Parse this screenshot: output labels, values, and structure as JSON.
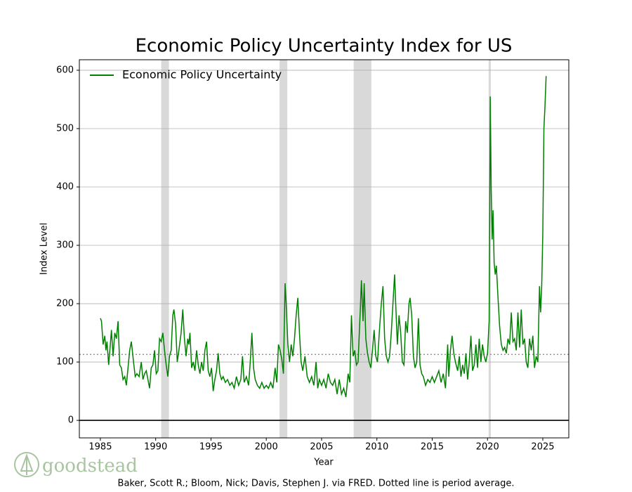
{
  "chart_data": {
    "type": "line",
    "title": "Economic Policy Uncertainty Index for US",
    "xlabel": "Year",
    "ylabel": "Index Level",
    "source": "Baker, Scott R.; Bloom, Nick; Davis, Stephen J. via FRED. Dotted line is period average.",
    "logo": "goodstead",
    "legend": "upper left",
    "grid": true,
    "xlim": [
      1983.1,
      2027.35
    ],
    "xticks": [
      1985,
      1990,
      1995,
      2000,
      2005,
      2010,
      2015,
      2020,
      2025
    ],
    "ylim": [
      -30,
      618
    ],
    "yticks": [
      0,
      100,
      200,
      300,
      400,
      500,
      600
    ],
    "average": 113,
    "recessions": [
      [
        1990.5,
        1991.2
      ],
      [
        2001.2,
        2001.9
      ],
      [
        2007.9,
        2009.5
      ],
      [
        2020.1,
        2020.3
      ]
    ],
    "x": [
      1985.0,
      1985.1,
      1985.25,
      1985.4,
      1985.5,
      1985.6,
      1985.75,
      1985.9,
      1986.0,
      1986.15,
      1986.3,
      1986.45,
      1986.6,
      1986.75,
      1986.9,
      1987.05,
      1987.2,
      1987.35,
      1987.5,
      1987.65,
      1987.8,
      1988.0,
      1988.15,
      1988.3,
      1988.5,
      1988.7,
      1988.85,
      1989.0,
      1989.15,
      1989.3,
      1989.45,
      1989.6,
      1989.75,
      1989.9,
      1990.05,
      1990.2,
      1990.35,
      1990.5,
      1990.65,
      1990.8,
      1990.95,
      1991.1,
      1991.25,
      1991.4,
      1991.55,
      1991.65,
      1991.8,
      1991.95,
      1992.1,
      1992.3,
      1992.45,
      1992.6,
      1992.75,
      1992.9,
      1993.0,
      1993.1,
      1993.25,
      1993.4,
      1993.55,
      1993.7,
      1993.85,
      1994.0,
      1994.15,
      1994.3,
      1994.45,
      1994.6,
      1994.75,
      1994.9,
      1995.05,
      1995.2,
      1995.35,
      1995.5,
      1995.65,
      1995.8,
      1995.95,
      1996.1,
      1996.3,
      1996.5,
      1996.7,
      1996.9,
      1997.1,
      1997.3,
      1997.5,
      1997.7,
      1997.85,
      1998.0,
      1998.2,
      1998.4,
      1998.55,
      1998.7,
      1998.85,
      1999.0,
      1999.2,
      1999.4,
      1999.6,
      1999.8,
      2000.0,
      2000.2,
      2000.4,
      2000.6,
      2000.8,
      2000.95,
      2001.1,
      2001.25,
      2001.4,
      2001.55,
      2001.7,
      2001.8,
      2001.95,
      2002.1,
      2002.25,
      2002.4,
      2002.55,
      2002.7,
      2002.85,
      2003.0,
      2003.15,
      2003.3,
      2003.5,
      2003.7,
      2003.9,
      2004.1,
      2004.3,
      2004.5,
      2004.65,
      2004.8,
      2005.0,
      2005.2,
      2005.4,
      2005.6,
      2005.8,
      2006.0,
      2006.2,
      2006.4,
      2006.6,
      2006.8,
      2007.0,
      2007.2,
      2007.4,
      2007.55,
      2007.7,
      2007.85,
      2008.0,
      2008.15,
      2008.3,
      2008.5,
      2008.6,
      2008.75,
      2008.85,
      2009.0,
      2009.15,
      2009.3,
      2009.45,
      2009.6,
      2009.75,
      2009.9,
      2010.05,
      2010.25,
      2010.4,
      2010.55,
      2010.7,
      2010.85,
      2011.0,
      2011.15,
      2011.3,
      2011.45,
      2011.6,
      2011.7,
      2011.85,
      2012.0,
      2012.15,
      2012.3,
      2012.45,
      2012.6,
      2012.75,
      2012.9,
      2013.0,
      2013.15,
      2013.3,
      2013.45,
      2013.6,
      2013.75,
      2013.9,
      2014.05,
      2014.2,
      2014.4,
      2014.6,
      2014.8,
      2015.0,
      2015.2,
      2015.4,
      2015.6,
      2015.8,
      2016.0,
      2016.2,
      2016.4,
      2016.5,
      2016.65,
      2016.8,
      2016.95,
      2017.1,
      2017.3,
      2017.45,
      2017.6,
      2017.75,
      2017.9,
      2018.05,
      2018.2,
      2018.35,
      2018.5,
      2018.65,
      2018.8,
      2018.95,
      2019.1,
      2019.25,
      2019.4,
      2019.55,
      2019.7,
      2019.85,
      2020.0,
      2020.15,
      2020.25,
      2020.33,
      2020.42,
      2020.5,
      2020.6,
      2020.7,
      2020.8,
      2020.95,
      2021.1,
      2021.25,
      2021.4,
      2021.55,
      2021.7,
      2021.85,
      2022.0,
      2022.15,
      2022.3,
      2022.45,
      2022.6,
      2022.75,
      2022.9,
      2023.05,
      2023.2,
      2023.35,
      2023.5,
      2023.65,
      2023.8,
      2023.95,
      2024.1,
      2024.25,
      2024.4,
      2024.55,
      2024.7,
      2024.8,
      2024.9,
      2025.0,
      2025.1,
      2025.2,
      2025.3
    ],
    "series": [
      {
        "name": "Economic Policy Uncertainty",
        "color": "#008000",
        "values": [
          175,
          170,
          130,
          145,
          120,
          135,
          95,
          130,
          155,
          110,
          150,
          140,
          170,
          95,
          90,
          70,
          75,
          60,
          90,
          120,
          135,
          100,
          75,
          80,
          75,
          100,
          70,
          80,
          85,
          70,
          55,
          90,
          95,
          120,
          80,
          85,
          140,
          135,
          150,
          120,
          95,
          75,
          110,
          120,
          180,
          190,
          165,
          100,
          120,
          150,
          190,
          140,
          110,
          140,
          130,
          150,
          90,
          100,
          85,
          120,
          95,
          80,
          100,
          85,
          120,
          135,
          85,
          75,
          90,
          50,
          70,
          85,
          115,
          80,
          70,
          75,
          65,
          70,
          60,
          65,
          55,
          75,
          60,
          70,
          110,
          65,
          75,
          60,
          100,
          150,
          90,
          70,
          60,
          55,
          65,
          55,
          60,
          55,
          65,
          55,
          90,
          65,
          130,
          120,
          105,
          80,
          235,
          200,
          130,
          100,
          130,
          110,
          140,
          180,
          210,
          150,
          100,
          85,
          110,
          75,
          65,
          75,
          60,
          100,
          55,
          70,
          60,
          70,
          55,
          80,
          65,
          60,
          70,
          45,
          70,
          45,
          55,
          40,
          80,
          65,
          180,
          110,
          120,
          95,
          100,
          190,
          240,
          170,
          235,
          140,
          115,
          100,
          90,
          120,
          155,
          110,
          100,
          160,
          200,
          230,
          140,
          110,
          100,
          110,
          150,
          200,
          250,
          200,
          130,
          180,
          150,
          100,
          95,
          170,
          150,
          200,
          210,
          180,
          110,
          90,
          100,
          175,
          95,
          80,
          75,
          60,
          70,
          65,
          75,
          65,
          75,
          85,
          65,
          80,
          55,
          130,
          75,
          120,
          145,
          115,
          100,
          85,
          110,
          75,
          95,
          80,
          115,
          70,
          100,
          145,
          85,
          95,
          130,
          90,
          140,
          100,
          130,
          110,
          100,
          115,
          170,
          555,
          400,
          310,
          360,
          270,
          250,
          265,
          210,
          160,
          130,
          120,
          125,
          115,
          140,
          130,
          185,
          135,
          140,
          120,
          185,
          125,
          190,
          130,
          140,
          100,
          90,
          140,
          120,
          145,
          90,
          110,
          100,
          230,
          185,
          230,
          320,
          500,
          540,
          590
        ]
      }
    ]
  }
}
